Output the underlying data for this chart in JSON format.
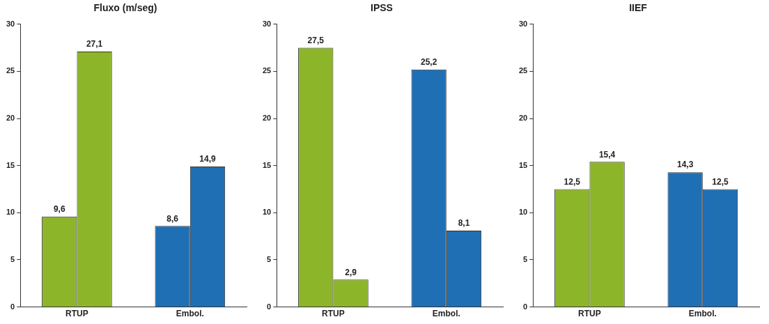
{
  "chart_data": [
    {
      "type": "bar",
      "title": "Fluxo (m/seg)",
      "categories": [
        "RTUP",
        "Embol."
      ],
      "series": [
        {
          "colors": [
            "#8db52a",
            "#1f6fb5"
          ],
          "values": [
            9.6,
            8.6
          ],
          "value_labels": [
            "9,6",
            "8,6"
          ]
        },
        {
          "colors": [
            "#8db52a",
            "#1f6fb5"
          ],
          "values": [
            27.1,
            14.9
          ],
          "value_labels": [
            "27,1",
            "14,9"
          ]
        }
      ],
      "ylim": [
        0,
        30
      ],
      "yticks": [
        0,
        5,
        10,
        15,
        20,
        25,
        30
      ],
      "grid": false,
      "legend": false
    },
    {
      "type": "bar",
      "title": "IPSS",
      "categories": [
        "RTUP",
        "Embol."
      ],
      "series": [
        {
          "colors": [
            "#8db52a",
            "#1f6fb5"
          ],
          "values": [
            27.5,
            25.2
          ],
          "value_labels": [
            "27,5",
            "25,2"
          ]
        },
        {
          "colors": [
            "#8db52a",
            "#1f6fb5"
          ],
          "values": [
            2.9,
            8.1
          ],
          "value_labels": [
            "2,9",
            "8,1"
          ]
        }
      ],
      "ylim": [
        0,
        30
      ],
      "yticks": [
        0,
        5,
        10,
        15,
        20,
        25,
        30
      ],
      "grid": false,
      "legend": false
    },
    {
      "type": "bar",
      "title": "IIEF",
      "categories": [
        "RTUP",
        "Embol."
      ],
      "series": [
        {
          "colors": [
            "#8db52a",
            "#1f6fb5"
          ],
          "values": [
            12.5,
            14.3
          ],
          "value_labels": [
            "12,5",
            "14,3"
          ]
        },
        {
          "colors": [
            "#8db52a",
            "#1f6fb5"
          ],
          "values": [
            15.4,
            12.5
          ],
          "value_labels": [
            "15,4",
            "12,5"
          ]
        }
      ],
      "ylim": [
        0,
        30
      ],
      "yticks": [
        0,
        5,
        10,
        15,
        20,
        25,
        30
      ],
      "grid": false,
      "legend": false
    }
  ]
}
